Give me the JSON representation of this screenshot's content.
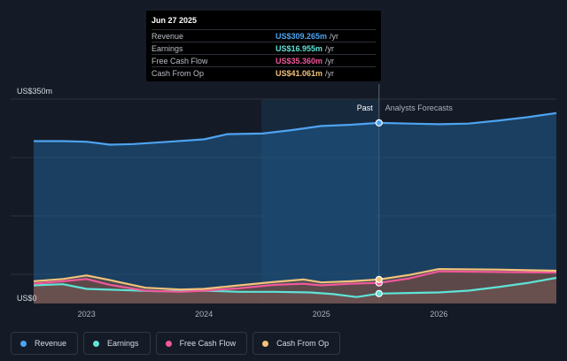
{
  "tooltip": {
    "date": "Jun 27 2025",
    "rows": [
      {
        "label": "Revenue",
        "value": "US$309.265m",
        "unit": "/yr",
        "color": "#4ea3f1"
      },
      {
        "label": "Earnings",
        "value": "US$16.955m",
        "unit": "/yr",
        "color": "#5fe3d7"
      },
      {
        "label": "Free Cash Flow",
        "value": "US$35.360m",
        "unit": "/yr",
        "color": "#f0589a"
      },
      {
        "label": "Cash From Op",
        "value": "US$41.061m",
        "unit": "/yr",
        "color": "#f3c27a"
      }
    ]
  },
  "chart_data": {
    "type": "line",
    "y_top_label": "US$350m",
    "y_bottom_label": "US$0",
    "ylim": [
      0,
      350
    ],
    "xlim": [
      2022.55,
      2027.0
    ],
    "x_tick_labels": [
      "2023",
      "2024",
      "2025",
      "2026"
    ],
    "x_ticks": [
      2023,
      2024,
      2025,
      2026
    ],
    "past_label": "Past",
    "forecast_label": "Analysts Forecasts",
    "divider_x": 2025.49,
    "highlight_start": 2024.49,
    "grid": true,
    "series": [
      {
        "name": "Revenue",
        "color": "#4ea3f1",
        "x": [
          2022.55,
          2022.8,
          2023.0,
          2023.2,
          2023.4,
          2023.7,
          2024.0,
          2024.2,
          2024.5,
          2024.75,
          2025.0,
          2025.25,
          2025.49,
          2025.75,
          2026.0,
          2026.25,
          2026.5,
          2026.75,
          2027.0
        ],
        "y": [
          278,
          278,
          277,
          272,
          273,
          277,
          281,
          290,
          291,
          297,
          304,
          306,
          309.3,
          308,
          307,
          308,
          313,
          319,
          326
        ]
      },
      {
        "name": "Earnings",
        "color": "#5fe3d7",
        "x": [
          2022.55,
          2022.8,
          2023.0,
          2023.3,
          2023.6,
          2024.0,
          2024.3,
          2024.6,
          2024.9,
          2025.1,
          2025.3,
          2025.49,
          2025.75,
          2026.0,
          2026.25,
          2026.5,
          2026.75,
          2027.0
        ],
        "y": [
          31,
          33,
          25,
          23,
          21,
          22,
          20,
          20,
          19,
          16,
          11,
          16.955,
          18,
          19,
          22,
          28,
          35,
          44
        ]
      },
      {
        "name": "Free Cash Flow",
        "color": "#f0589a",
        "x": [
          2022.55,
          2022.8,
          2023.0,
          2023.2,
          2023.5,
          2023.8,
          2024.0,
          2024.3,
          2024.6,
          2024.85,
          2025.0,
          2025.25,
          2025.49,
          2025.75,
          2026.0,
          2026.5,
          2027.0
        ],
        "y": [
          34,
          38,
          42,
          32,
          22,
          20,
          22,
          26,
          32,
          34,
          31,
          34,
          35.36,
          43,
          55,
          54,
          53
        ]
      },
      {
        "name": "Cash From Op",
        "color": "#f3c27a",
        "x": [
          2022.55,
          2022.8,
          2023.0,
          2023.2,
          2023.5,
          2023.8,
          2024.0,
          2024.3,
          2024.6,
          2024.85,
          2025.0,
          2025.25,
          2025.49,
          2025.75,
          2026.0,
          2026.5,
          2027.0
        ],
        "y": [
          38,
          42,
          48,
          40,
          27,
          24,
          25,
          31,
          37,
          41,
          36,
          38,
          41.06,
          49,
          59,
          58,
          56
        ]
      }
    ]
  },
  "legend": {
    "items": [
      {
        "label": "Revenue",
        "color": "#4ea3f1"
      },
      {
        "label": "Earnings",
        "color": "#5fe3d7"
      },
      {
        "label": "Free Cash Flow",
        "color": "#f0589a"
      },
      {
        "label": "Cash From Op",
        "color": "#f3c27a"
      }
    ]
  }
}
